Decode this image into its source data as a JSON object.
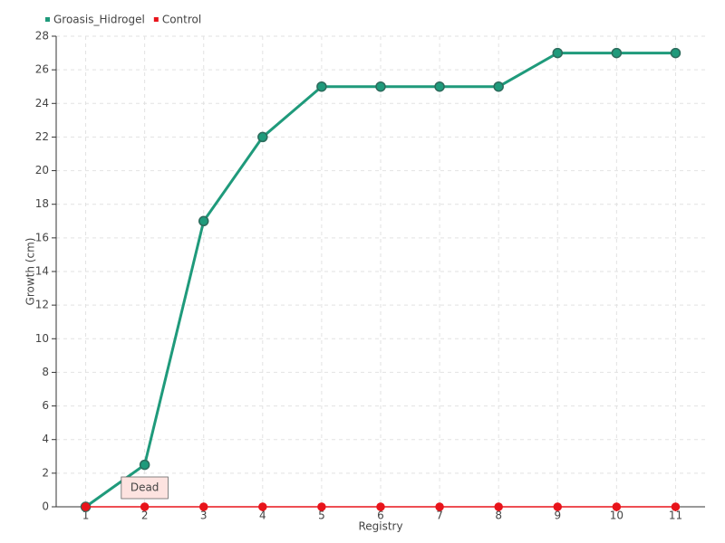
{
  "chart_data": {
    "type": "line",
    "xlabel": "Registry",
    "ylabel": "Growth (cm)",
    "categories": [
      "1",
      "2",
      "3",
      "4",
      "5",
      "6",
      "7",
      "8",
      "9",
      "10",
      "11"
    ],
    "series": [
      {
        "name": "Groasis_Hidrogel",
        "color": "#1f9a7b",
        "values": [
          0,
          2.5,
          17,
          22,
          25,
          25,
          25,
          25,
          27,
          27,
          27
        ]
      },
      {
        "name": "Control",
        "color": "#e8141b",
        "values": [
          0,
          0,
          0,
          0,
          0,
          0,
          0,
          0,
          0,
          0,
          0
        ]
      }
    ],
    "ylim": [
      0,
      28
    ],
    "yticks": [
      0,
      2,
      4,
      6,
      8,
      10,
      12,
      14,
      16,
      18,
      20,
      22,
      24,
      26,
      28
    ],
    "grid": true,
    "legend": "top-left",
    "annotations": [
      {
        "text": "Dead",
        "x": "2",
        "y": 0
      }
    ]
  }
}
